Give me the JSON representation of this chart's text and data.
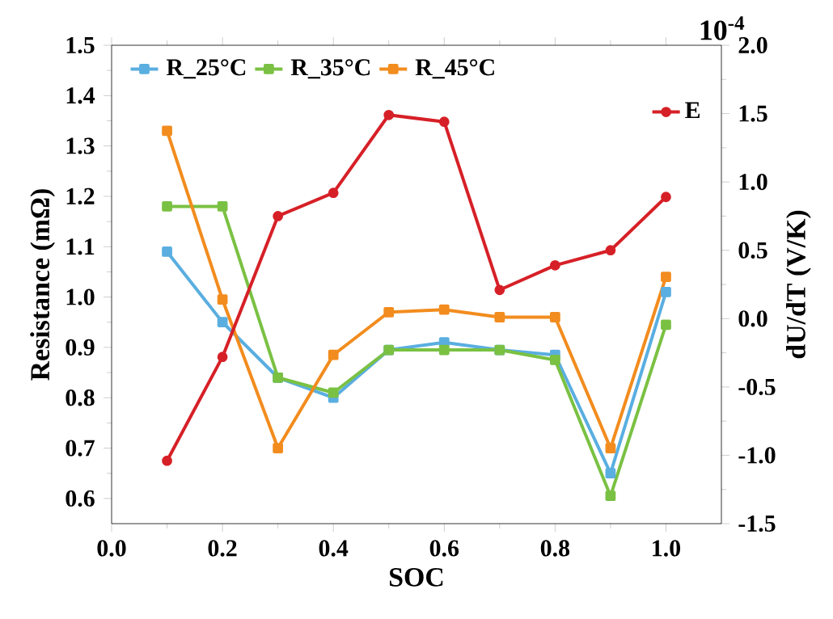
{
  "chart_data": {
    "type": "line",
    "xlabel": "SOC",
    "ylabel": "Resistance (mΩ)",
    "y2label": "dU/dT (V/K)",
    "x": [
      0.1,
      0.2,
      0.3,
      0.4,
      0.5,
      0.6,
      0.7,
      0.8,
      0.9,
      1.0
    ],
    "series": [
      {
        "name": "R_25°C",
        "color": "#5aaee0",
        "marker": "square",
        "values": [
          1.09,
          0.95,
          0.84,
          0.8,
          0.895,
          0.91,
          0.895,
          0.885,
          0.65,
          1.01
        ]
      },
      {
        "name": "R_35°C",
        "color": "#7ac143",
        "marker": "square",
        "values": [
          1.18,
          1.18,
          0.84,
          0.81,
          0.895,
          0.895,
          0.895,
          0.875,
          0.605,
          0.945
        ]
      },
      {
        "name": "R_45°C",
        "color": "#f28c1e",
        "marker": "square",
        "values": [
          1.33,
          0.995,
          0.7,
          0.885,
          0.97,
          0.975,
          0.96,
          0.96,
          0.7,
          1.04
        ]
      },
      {
        "name": "E",
        "color": "#d62027",
        "marker": "circle",
        "axis": "y2",
        "values": [
          -1.04,
          -0.28,
          0.75,
          0.92,
          1.49,
          1.44,
          0.21,
          0.39,
          0.5,
          0.89
        ]
      }
    ],
    "xlim": [
      0.0,
      1.1
    ],
    "xticks": [
      {
        "value": 0.0,
        "label": "0.0"
      },
      {
        "value": 0.2,
        "label": "0.2"
      },
      {
        "value": 0.4,
        "label": "0.4"
      },
      {
        "value": 0.6,
        "label": "0.6"
      },
      {
        "value": 0.8,
        "label": "0.8"
      },
      {
        "value": 1.0,
        "label": "1.0"
      }
    ],
    "ylim": [
      0.55,
      1.5
    ],
    "yticks": [
      {
        "value": 0.6,
        "label": "0.6"
      },
      {
        "value": 0.7,
        "label": "0.7"
      },
      {
        "value": 0.8,
        "label": "0.8"
      },
      {
        "value": 0.9,
        "label": "0.9"
      },
      {
        "value": 1.0,
        "label": "1.0"
      },
      {
        "value": 1.1,
        "label": "1.1"
      },
      {
        "value": 1.2,
        "label": "1.2"
      },
      {
        "value": 1.3,
        "label": "1.3"
      },
      {
        "value": 1.4,
        "label": "1.4"
      },
      {
        "value": 1.5,
        "label": "1.5"
      }
    ],
    "y2lim": [
      -1.5,
      2.0
    ],
    "y2ticks": [
      {
        "value": -1.5,
        "label": "-1.5"
      },
      {
        "value": -1.0,
        "label": "-1.0"
      },
      {
        "value": -0.5,
        "label": "-0.5"
      },
      {
        "value": 0.0,
        "label": "0.0"
      },
      {
        "value": 0.5,
        "label": "0.5"
      },
      {
        "value": 1.0,
        "label": "1.0"
      },
      {
        "value": 1.5,
        "label": "1.5"
      },
      {
        "value": 2.0,
        "label": "2.0"
      }
    ],
    "annotations": [
      "10$^{-4}$"
    ],
    "legend": "top",
    "grid": false,
    "line_style": "solid"
  }
}
